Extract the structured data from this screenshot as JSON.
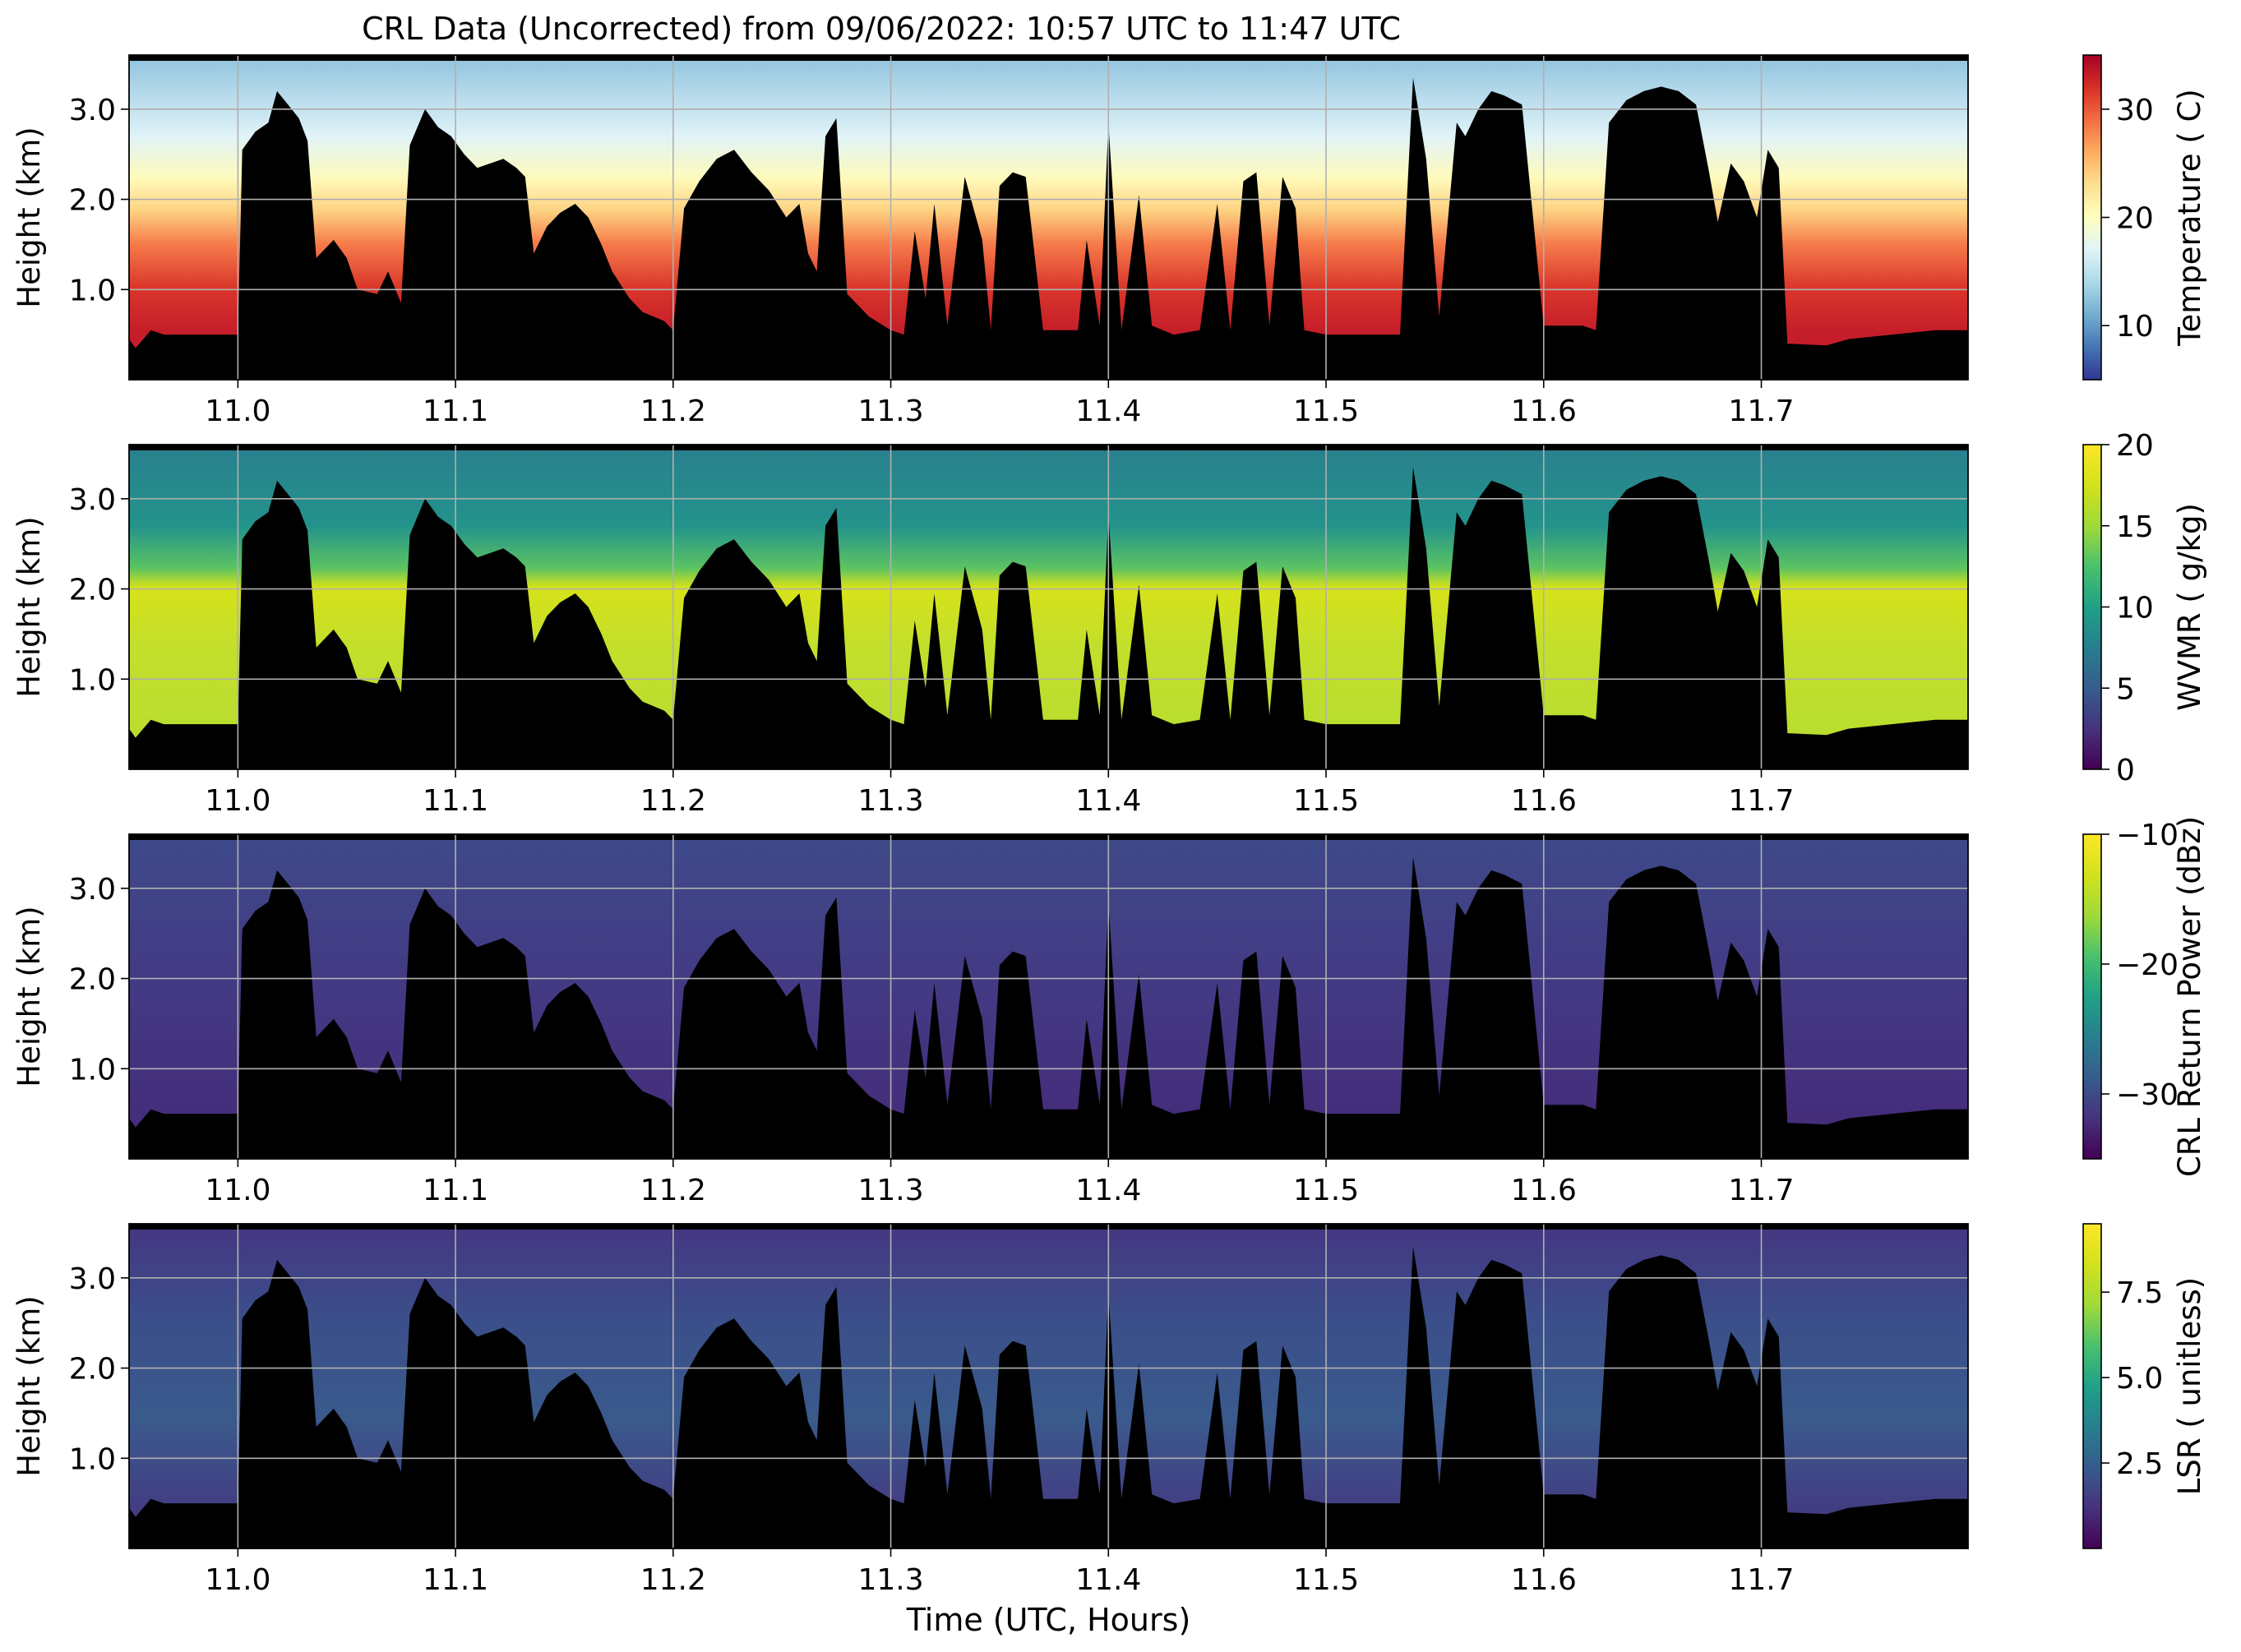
{
  "title": "CRL Data (Uncorrected) from 09/06/2022: 10:57 UTC to 11:47 UTC",
  "chart_data": [
    {
      "type": "heatmap",
      "ylabel": "Height (km)",
      "xlim": [
        10.95,
        11.795
      ],
      "ylim": [
        0.0,
        3.6
      ],
      "x_ticks": [
        "11.0",
        "11.1",
        "11.2",
        "11.3",
        "11.4",
        "11.5",
        "11.6",
        "11.7"
      ],
      "y_ticks": [
        "1.0",
        "2.0",
        "3.0"
      ],
      "grid": true,
      "colormap": "RdYlBu_r",
      "colorbar": {
        "label": "Temperature ( C)",
        "range": [
          5,
          35
        ],
        "ticks": [
          "10",
          "20",
          "30"
        ]
      },
      "mask_color": "#000000"
    },
    {
      "type": "heatmap",
      "ylabel": "Height (km)",
      "xlim": [
        10.95,
        11.795
      ],
      "ylim": [
        0.0,
        3.6
      ],
      "x_ticks": [
        "11.0",
        "11.1",
        "11.2",
        "11.3",
        "11.4",
        "11.5",
        "11.6",
        "11.7"
      ],
      "y_ticks": [
        "1.0",
        "2.0",
        "3.0"
      ],
      "grid": true,
      "colormap": "viridis",
      "colorbar": {
        "label": "WVMR ( g/kg)",
        "range": [
          0,
          20
        ],
        "ticks": [
          "0",
          "5",
          "10",
          "15",
          "20"
        ]
      },
      "mask_color": "#000000"
    },
    {
      "type": "heatmap",
      "ylabel": "Height (km)",
      "xlim": [
        10.95,
        11.795
      ],
      "ylim": [
        0.0,
        3.6
      ],
      "x_ticks": [
        "11.0",
        "11.1",
        "11.2",
        "11.3",
        "11.4",
        "11.5",
        "11.6",
        "11.7"
      ],
      "y_ticks": [
        "1.0",
        "2.0",
        "3.0"
      ],
      "grid": true,
      "colormap": "viridis",
      "colorbar": {
        "label": "CRL Return Power (dBz)",
        "range": [
          -35,
          -10
        ],
        "ticks": [
          "−10",
          "−20",
          "−30"
        ]
      },
      "mask_color": "#000000"
    },
    {
      "type": "heatmap",
      "ylabel": "Height (km)",
      "xlabel": "Time (UTC, Hours)",
      "xlim": [
        10.95,
        11.795
      ],
      "ylim": [
        0.0,
        3.6
      ],
      "x_ticks": [
        "11.0",
        "11.1",
        "11.2",
        "11.3",
        "11.4",
        "11.5",
        "11.6",
        "11.7"
      ],
      "y_ticks": [
        "1.0",
        "2.0",
        "3.0"
      ],
      "grid": true,
      "colormap": "viridis",
      "colorbar": {
        "label": "LSR ( unitless)",
        "range": [
          0,
          9.5
        ],
        "ticks": [
          "2.5",
          "5.0",
          "7.5"
        ]
      },
      "mask_color": "#000000"
    }
  ]
}
